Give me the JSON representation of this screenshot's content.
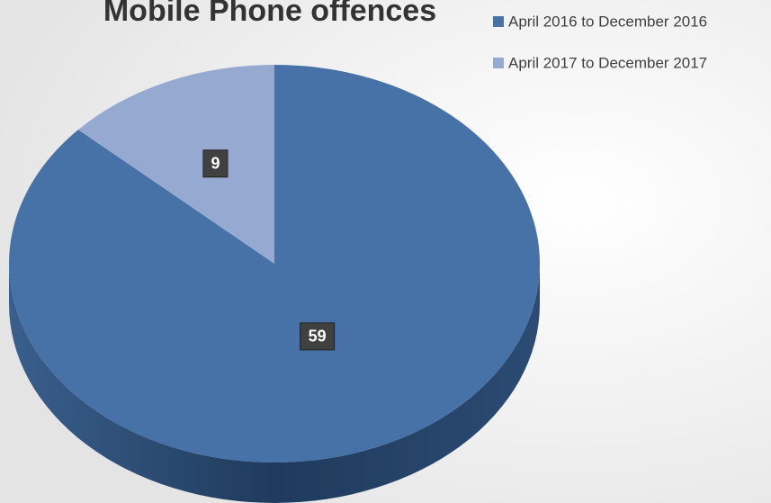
{
  "chart_data": {
    "type": "pie",
    "title": "Mobile Phone offences",
    "categories": [
      "April 2016 to December 2016",
      "April 2017 to December 2017"
    ],
    "values": [
      59,
      9
    ],
    "colors": [
      "#4672a8",
      "#95a9d1"
    ],
    "legend": "top-right"
  }
}
